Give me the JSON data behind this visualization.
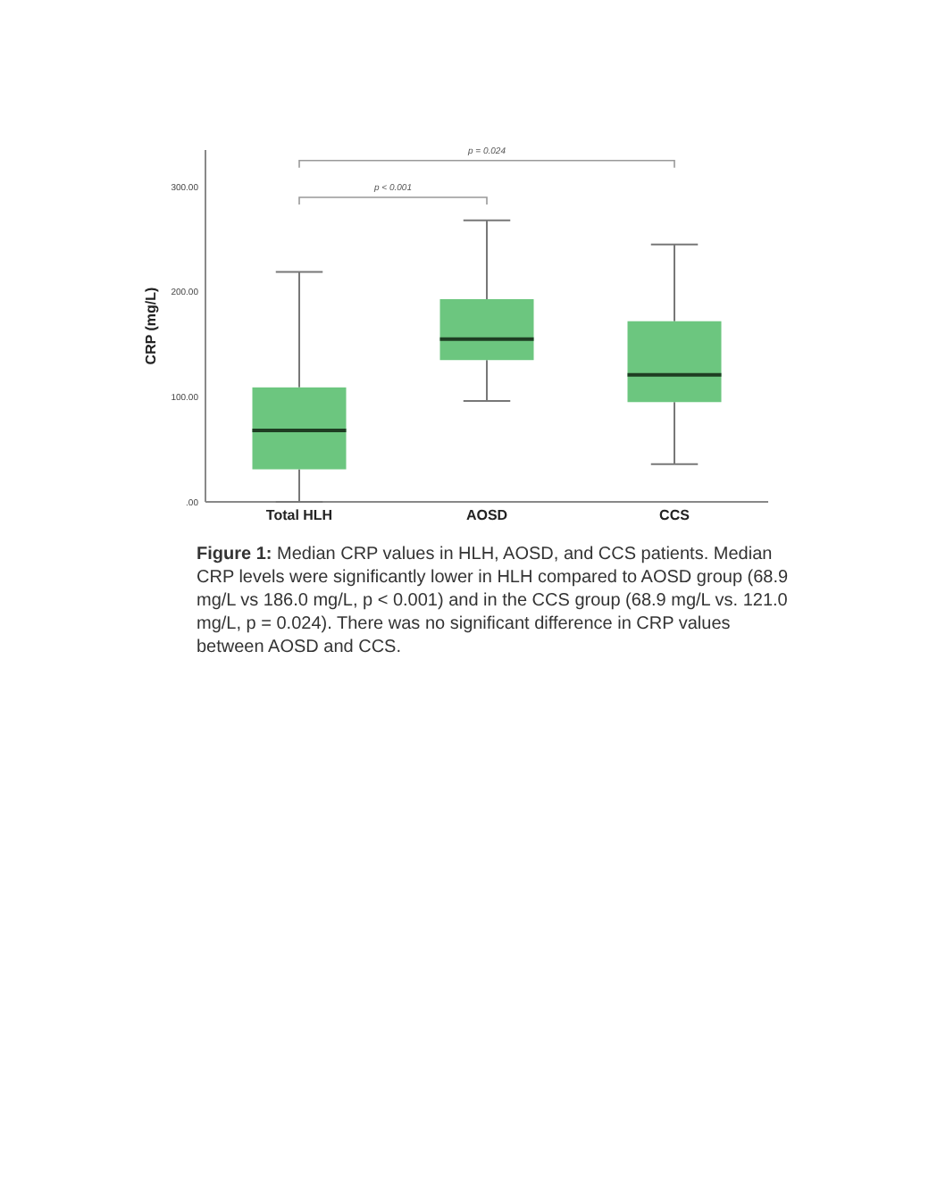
{
  "chart_data": {
    "type": "box",
    "ylabel": "CRP (mg/L)",
    "categories": [
      "Total HLH",
      "AOSD",
      "CCS"
    ],
    "color": "#6cc67f",
    "boxes": [
      {
        "low": 0,
        "q1": 31,
        "median": 68,
        "q3": 109,
        "high": 219
      },
      {
        "low": 96,
        "q1": 135,
        "median": 155,
        "q3": 193,
        "high": 268
      },
      {
        "low": 36,
        "q1": 95,
        "median": 121,
        "q3": 172,
        "high": 245
      }
    ],
    "ylim": [
      0,
      335
    ],
    "yticks": [
      {
        "value": 0,
        "label": ".00"
      },
      {
        "value": 100,
        "label": "100.00"
      },
      {
        "value": 200,
        "label": "200.00"
      },
      {
        "value": 300,
        "label": "300.00"
      }
    ],
    "grid": false,
    "annotations": [
      "p < 0.001",
      "p = 0.024",
      "Figure 1:",
      "Median CRP values in HLH, AOSD, and CCS patients.  Median CRP levels were significantly lower in HLH compared to AOSD group (68.9 mg/L vs 186.0 mg/L, p < 0.001) and in the CCS group (68.9 mg/L vs. 121.0 mg/L, p = 0.024). There was no significant difference in CRP values between AOSD and CCS."
    ]
  }
}
